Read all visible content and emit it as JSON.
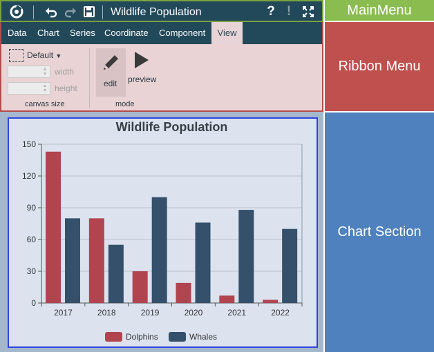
{
  "app": {
    "title": "Wildlife Population",
    "icons": [
      "app-logo-icon",
      "undo-icon",
      "redo-icon",
      "save-icon",
      "help-icon",
      "alert-icon",
      "fullscreen-icon"
    ]
  },
  "ribbon": {
    "tabs": [
      {
        "label": "Data"
      },
      {
        "label": "Chart"
      },
      {
        "label": "Series"
      },
      {
        "label": "Coordinate"
      },
      {
        "label": "Component"
      },
      {
        "label": "View"
      }
    ],
    "active_tab": "View",
    "canvas_size": {
      "preset": "Default",
      "width_label": "width",
      "height_label": "height",
      "group_label": "canvas size"
    },
    "mode": {
      "edit_label": "edit",
      "preview_label": "preview",
      "group_label": "mode"
    }
  },
  "regions": {
    "main_menu": "MainMenu",
    "ribbon_menu": "Ribbon Menu",
    "chart_section": "Chart Section"
  },
  "colors": {
    "dolphins": "#b04550",
    "whales": "#34506b",
    "main_menu_label_bg": "#8bbc4f",
    "ribbon_label_bg": "#c0504d",
    "chart_label_bg": "#4e81bd"
  },
  "chart_data": {
    "type": "bar",
    "title": "Wildlife Population",
    "categories": [
      "2017",
      "2018",
      "2019",
      "2020",
      "2021",
      "2022"
    ],
    "series": [
      {
        "name": "Dolphins",
        "values": [
          143,
          80,
          30,
          19,
          7,
          3
        ]
      },
      {
        "name": "Whales",
        "values": [
          80,
          55,
          100,
          76,
          88,
          70
        ]
      }
    ],
    "ylim": [
      0,
      150
    ],
    "yticks": [
      0,
      30,
      60,
      90,
      120,
      150
    ],
    "grid": true,
    "legend": "bottom-center"
  }
}
